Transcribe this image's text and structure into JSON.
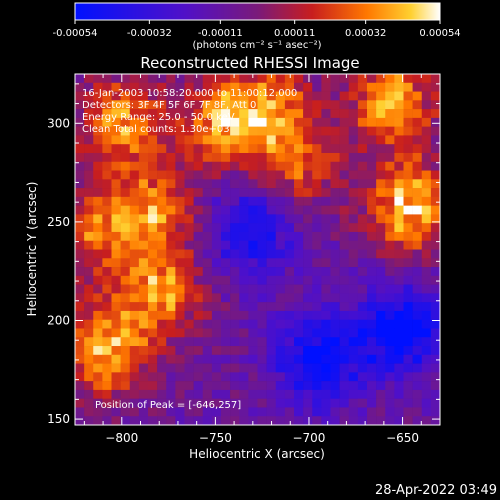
{
  "chart_data": {
    "type": "heatmap",
    "title": "Reconstructed RHESSI Image",
    "xlabel": "Heliocentric X (arcsec)",
    "ylabel": "Heliocentric Y (arcsec)",
    "xlim": [
      -825,
      -630
    ],
    "ylim": [
      147,
      325
    ],
    "x_ticks": [
      -800,
      -750,
      -700,
      -650
    ],
    "y_ticks": [
      150,
      200,
      250,
      300
    ],
    "colorbar": {
      "unit_label": "(photons cm⁻² s⁻¹ asec⁻²)",
      "range": [
        -0.00054,
        0.00054
      ],
      "ticks": [
        "-0.00054",
        "-0.00032",
        "-0.00011",
        "0.00011",
        "0.00032",
        "0.00054"
      ]
    },
    "annotations": {
      "time": "16-Jan-2003 10:58:20.000 to 11:00:12.000",
      "detectors": "Detectors: 3F 4F 5F 6F 7F 8F, Att 0",
      "energy": "Energy Range: 25.0 - 50.0 keV",
      "clean": "Clean    Total counts: 1.30e+03",
      "peak": "Position of Peak = [-646,257]"
    },
    "peak_position": [
      -646,
      257
    ],
    "bright_regions": [
      {
        "x": -808,
        "y": 185,
        "level": 0.95
      },
      {
        "x": -800,
        "y": 300,
        "level": 0.85
      },
      {
        "x": -745,
        "y": 300,
        "level": 0.85
      },
      {
        "x": -785,
        "y": 255,
        "level": 0.75
      },
      {
        "x": -655,
        "y": 310,
        "level": 0.85
      },
      {
        "x": -646,
        "y": 257,
        "level": 1.0
      },
      {
        "x": -780,
        "y": 215,
        "level": 0.8
      },
      {
        "x": -705,
        "y": 280,
        "level": 0.6
      },
      {
        "x": -815,
        "y": 245,
        "level": 0.6
      },
      {
        "x": -720,
        "y": 310,
        "level": 0.6
      }
    ],
    "dark_regions": [
      {
        "x": -695,
        "y": 180,
        "level": -0.9
      },
      {
        "x": -650,
        "y": 195,
        "level": -0.95
      },
      {
        "x": -730,
        "y": 245,
        "level": -0.7
      }
    ]
  },
  "footer": {
    "timestamp": "28-Apr-2022 03:49"
  }
}
